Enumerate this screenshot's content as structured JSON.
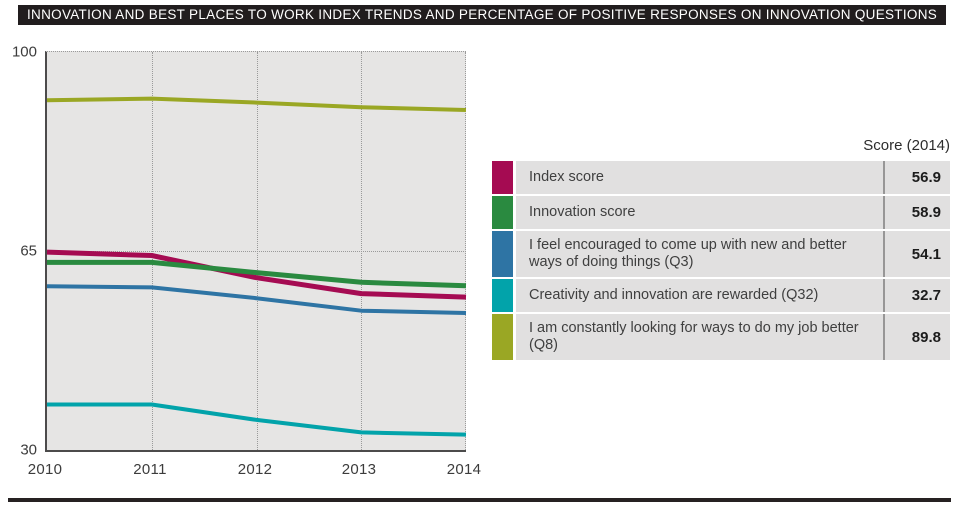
{
  "header": {
    "title": "INNOVATION AND BEST PLACES TO WORK INDEX TRENDS AND PERCENTAGE OF POSITIVE RESPONSES ON INNOVATION QUESTIONS"
  },
  "chart_data": {
    "type": "line",
    "title": "Innovation and Best Places to Work index trends and percentage of positive responses on innovation questions",
    "x": [
      2010,
      2011,
      2012,
      2013,
      2014
    ],
    "xlabel": "",
    "ylabel": "",
    "ylim": [
      30,
      100
    ],
    "yticks": [
      30,
      65,
      100
    ],
    "grid": {
      "vertical_dotted_at": [
        2011,
        2012,
        2013,
        2014
      ],
      "horizontal_dotted_at": [
        65,
        100
      ],
      "plot_background": "#e6e5e4"
    },
    "legend_position": "right",
    "legend_header": "Score (2014)",
    "series": [
      {
        "name": "Index score",
        "color": "#a50b52",
        "stroke_width": 5,
        "values": [
          64.8,
          64.2,
          60.3,
          57.5,
          56.9
        ],
        "score_2014": "56.9"
      },
      {
        "name": "Innovation score",
        "color": "#2a8a40",
        "stroke_width": 5,
        "values": [
          63.0,
          63.0,
          61.2,
          59.5,
          58.9
        ],
        "score_2014": "58.9"
      },
      {
        "name": "I feel encouraged to come up with new and better ways of doing things (Q3)",
        "color": "#2e74a4",
        "stroke_width": 4,
        "values": [
          58.8,
          58.6,
          56.7,
          54.5,
          54.1
        ],
        "score_2014": "54.1"
      },
      {
        "name": "Creativity and innovation are rewarded (Q32)",
        "color": "#02a3aa",
        "stroke_width": 4,
        "values": [
          38.0,
          38.0,
          35.3,
          33.1,
          32.7
        ],
        "score_2014": "32.7"
      },
      {
        "name": "I am constantly looking for ways to do my job better (Q8)",
        "color": "#9aa724",
        "stroke_width": 4,
        "values": [
          91.5,
          91.8,
          91.1,
          90.3,
          89.8
        ],
        "score_2014": "89.8"
      }
    ]
  }
}
